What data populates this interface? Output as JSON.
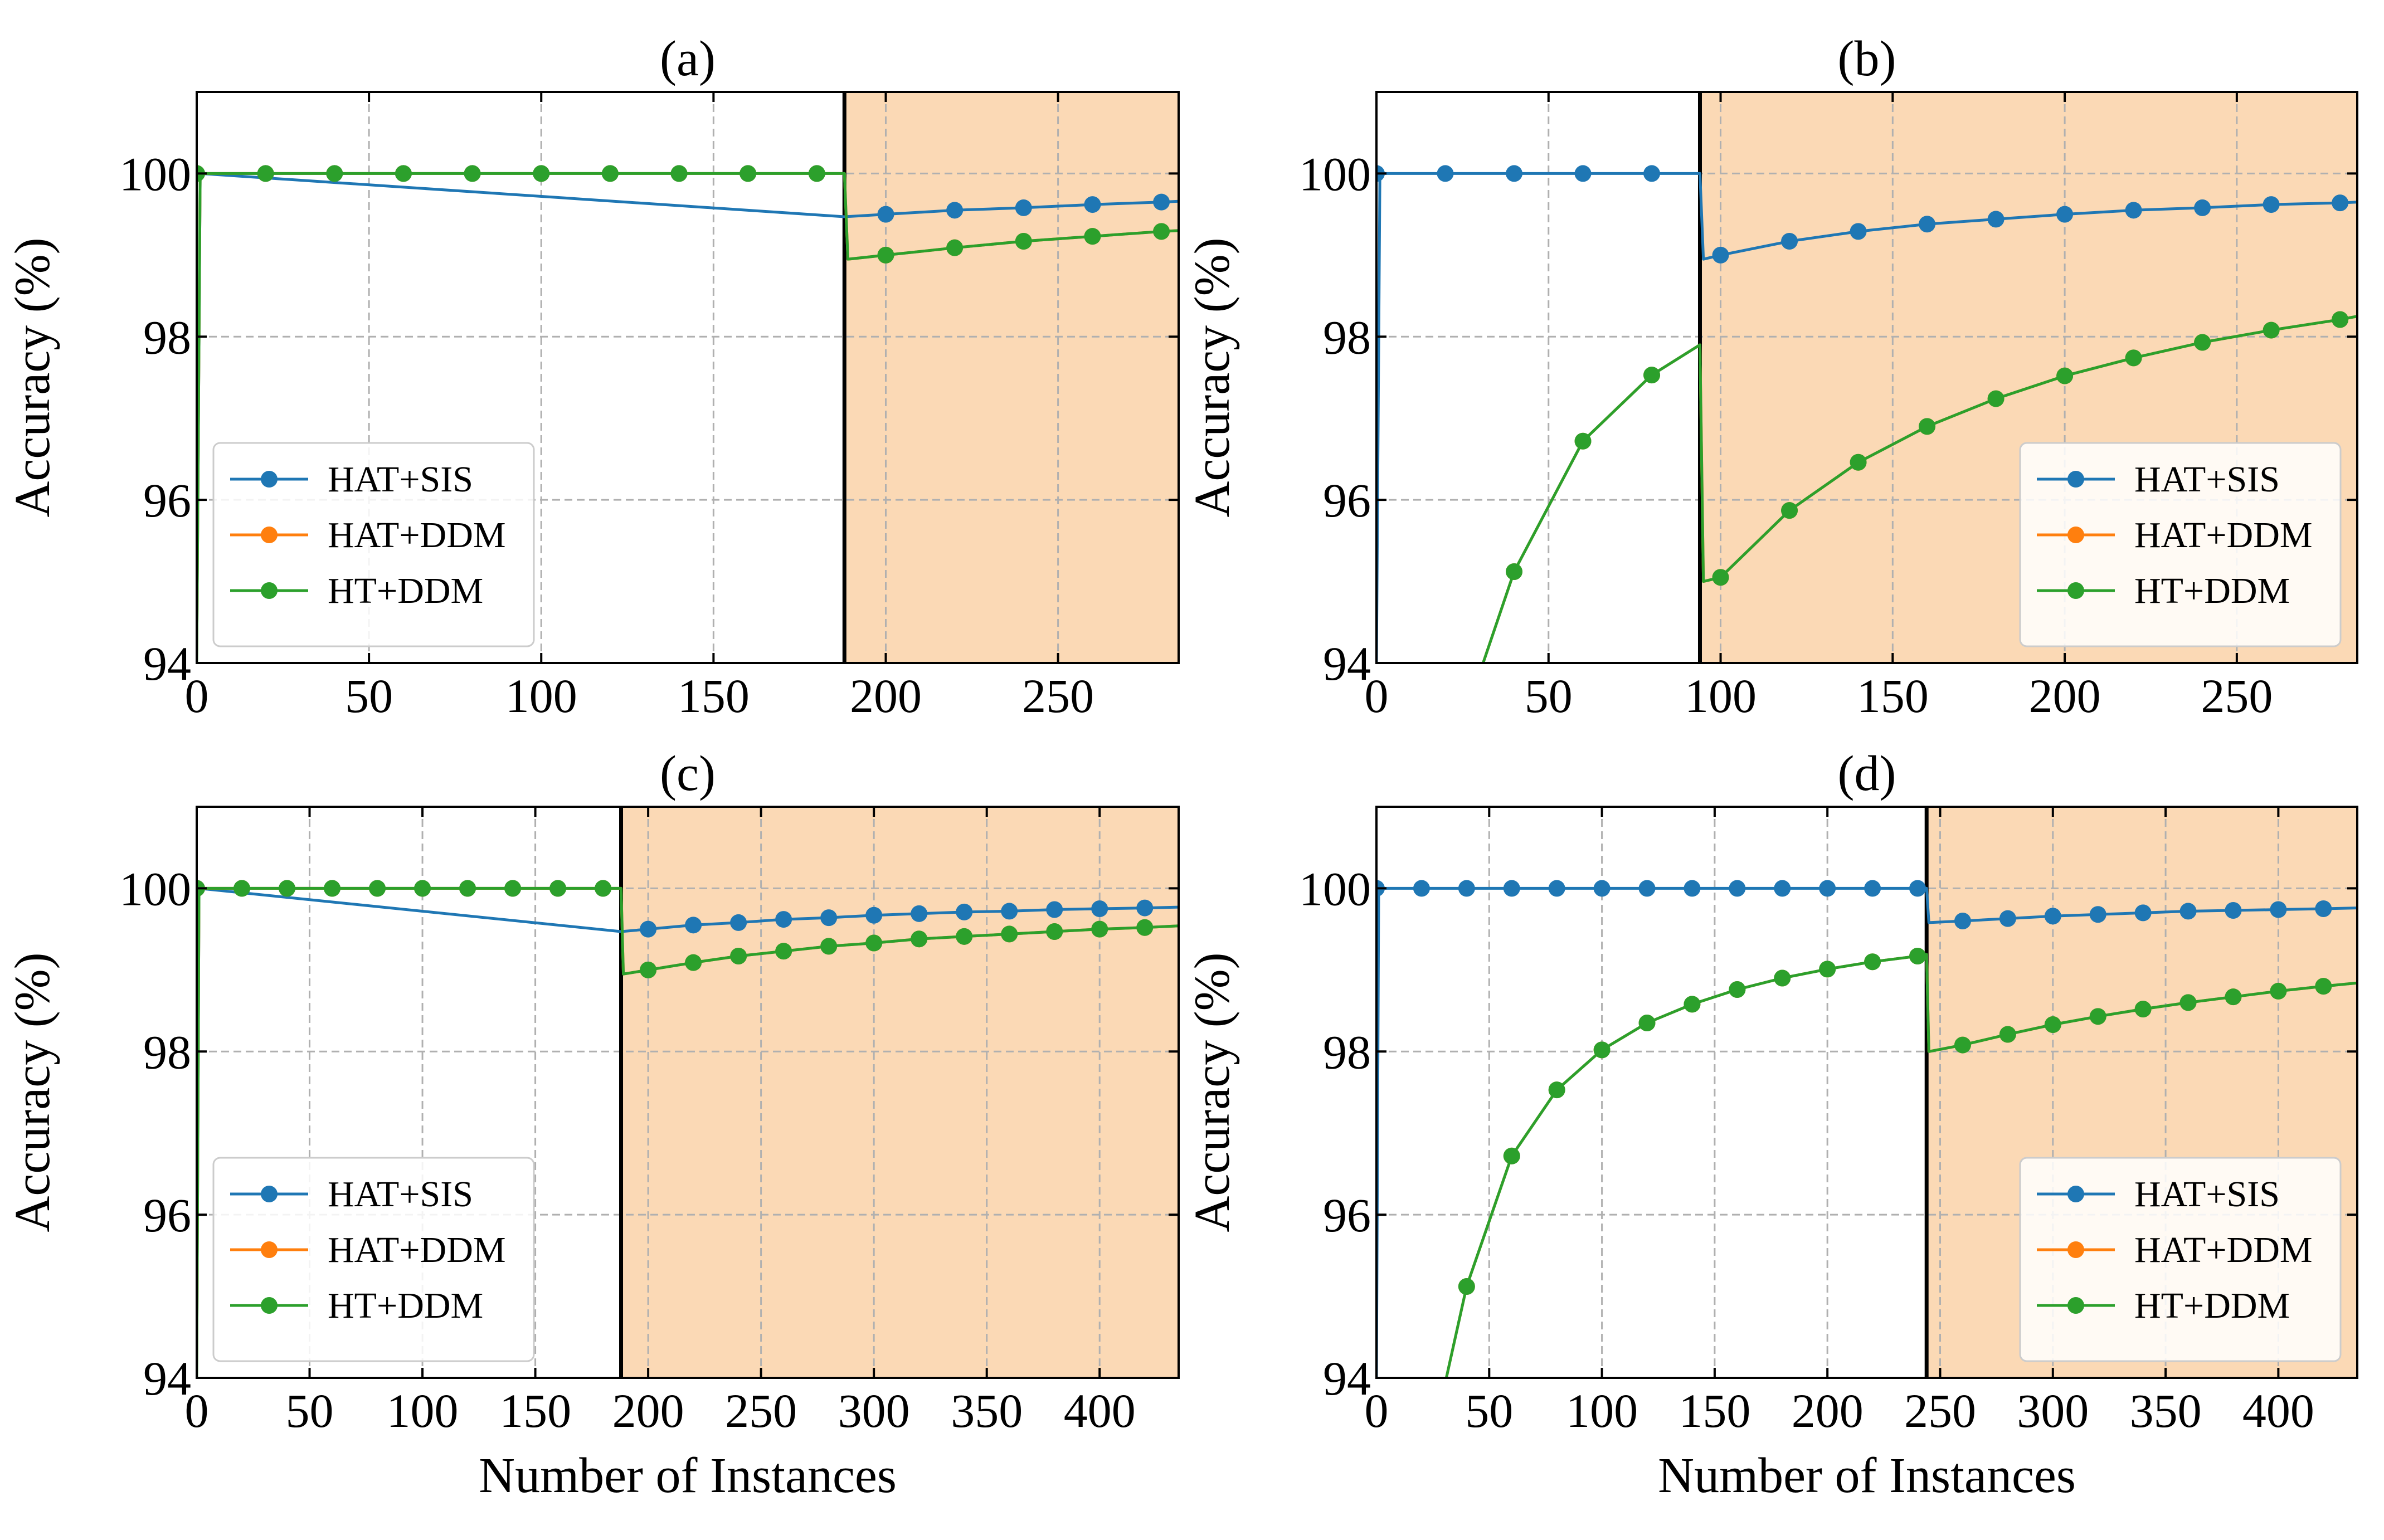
{
  "figure": {
    "xlabel": "Number of Instances",
    "ylabel": "Accuracy (%)"
  },
  "colors": {
    "HAT+SIS": "#1f77b4",
    "HAT+DDM": "#ff7f0e",
    "HT+DDM": "#2ca02c",
    "drift_region": "#fbd9b5",
    "grid": "#b0b0b0",
    "axis": "#000000"
  },
  "chart_data": [
    {
      "type": "line",
      "title": "(a)",
      "xlabel": "",
      "ylabel": "Accuracy (%)",
      "xlim": [
        0,
        285
      ],
      "ylim": [
        94,
        101
      ],
      "xticks": [
        0,
        50,
        100,
        150,
        200,
        250
      ],
      "yticks": [
        94,
        96,
        98,
        100
      ],
      "grid": true,
      "legend_position": "lower-left",
      "drift_point": 188,
      "series": [
        {
          "name": "HAT+SIS",
          "x": [
            0,
            1,
            188,
            200,
            220,
            240,
            260,
            280,
            285
          ],
          "y": [
            94,
            100,
            99.47,
            99.5,
            99.55,
            99.58,
            99.62,
            99.65,
            99.66
          ],
          "marker_x": [
            0,
            20,
            40,
            60,
            80,
            100,
            120,
            140,
            160,
            180,
            200,
            220,
            240,
            260,
            280
          ],
          "marker_y": [
            100,
            100,
            100,
            100,
            100,
            100,
            100,
            100,
            100,
            100,
            99.5,
            99.55,
            99.58,
            99.62,
            99.65
          ]
        },
        {
          "name": "HAT+DDM",
          "x": [
            0,
            1,
            188,
            189,
            200,
            220,
            240,
            260,
            280,
            285
          ],
          "y": [
            94,
            100,
            100,
            98.95,
            99.0,
            99.09,
            99.17,
            99.23,
            99.29,
            99.3
          ],
          "marker_x": [
            0,
            20,
            40,
            60,
            80,
            100,
            120,
            140,
            160,
            180,
            200,
            220,
            240,
            260,
            280
          ],
          "marker_y": [
            100,
            100,
            100,
            100,
            100,
            100,
            100,
            100,
            100,
            100,
            99.0,
            99.09,
            99.17,
            99.23,
            99.29
          ]
        },
        {
          "name": "HT+DDM",
          "x": [
            0,
            1,
            188,
            189,
            200,
            220,
            240,
            260,
            280,
            285
          ],
          "y": [
            94,
            100,
            100,
            98.95,
            99.0,
            99.09,
            99.17,
            99.23,
            99.29,
            99.3
          ],
          "marker_x": [
            0,
            20,
            40,
            60,
            80,
            100,
            120,
            140,
            160,
            180,
            200,
            220,
            240,
            260,
            280
          ],
          "marker_y": [
            100,
            100,
            100,
            100,
            100,
            100,
            100,
            100,
            100,
            100,
            99.0,
            99.09,
            99.17,
            99.23,
            99.29
          ]
        }
      ]
    },
    {
      "type": "line",
      "title": "(b)",
      "xlabel": "",
      "ylabel": "Accuracy (%)",
      "xlim": [
        0,
        285
      ],
      "ylim": [
        94,
        101
      ],
      "xticks": [
        0,
        50,
        100,
        150,
        200,
        250
      ],
      "yticks": [
        94,
        96,
        98,
        100
      ],
      "grid": true,
      "legend_position": "lower-right",
      "drift_point": 94,
      "series": [
        {
          "name": "HAT+SIS",
          "x": [
            0,
            1,
            94,
            95,
            100,
            120,
            140,
            160,
            180,
            200,
            220,
            240,
            260,
            280,
            285
          ],
          "y": [
            94,
            100,
            100,
            98.95,
            99.0,
            99.17,
            99.29,
            99.38,
            99.44,
            99.5,
            99.55,
            99.58,
            99.62,
            99.64,
            99.65
          ],
          "marker_x": [
            0,
            20,
            40,
            60,
            80,
            100,
            120,
            140,
            160,
            180,
            200,
            220,
            240,
            260,
            280
          ],
          "marker_y": [
            100,
            100,
            100,
            100,
            100,
            99.0,
            99.17,
            99.29,
            99.38,
            99.44,
            99.5,
            99.55,
            99.58,
            99.62,
            99.64
          ]
        },
        {
          "name": "HAT+DDM",
          "x": [
            31,
            40,
            60,
            80,
            94,
            95,
            100,
            120,
            140,
            160,
            180,
            200,
            220,
            240,
            260,
            280,
            285
          ],
          "y": [
            94,
            95.12,
            96.72,
            97.53,
            97.9,
            95.0,
            95.05,
            95.87,
            96.46,
            96.9,
            97.24,
            97.52,
            97.74,
            97.93,
            98.08,
            98.21,
            98.25
          ],
          "marker_x": [
            40,
            60,
            80,
            100,
            120,
            140,
            160,
            180,
            200,
            220,
            240,
            260,
            280
          ],
          "marker_y": [
            95.12,
            96.72,
            97.53,
            95.05,
            95.87,
            96.46,
            96.9,
            97.24,
            97.52,
            97.74,
            97.93,
            98.08,
            98.21
          ]
        },
        {
          "name": "HT+DDM",
          "x": [
            31,
            40,
            60,
            80,
            94,
            95,
            100,
            120,
            140,
            160,
            180,
            200,
            220,
            240,
            260,
            280,
            285
          ],
          "y": [
            94,
            95.12,
            96.72,
            97.53,
            97.9,
            95.0,
            95.05,
            95.87,
            96.46,
            96.9,
            97.24,
            97.52,
            97.74,
            97.93,
            98.08,
            98.21,
            98.25
          ],
          "marker_x": [
            40,
            60,
            80,
            100,
            120,
            140,
            160,
            180,
            200,
            220,
            240,
            260,
            280
          ],
          "marker_y": [
            95.12,
            96.72,
            97.53,
            95.05,
            95.87,
            96.46,
            96.9,
            97.24,
            97.52,
            97.74,
            97.93,
            98.08,
            98.21
          ]
        }
      ]
    },
    {
      "type": "line",
      "title": "(c)",
      "xlabel": "Number of Instances",
      "ylabel": "Accuracy (%)",
      "xlim": [
        0,
        435
      ],
      "ylim": [
        94,
        101
      ],
      "xticks": [
        0,
        50,
        100,
        150,
        200,
        250,
        300,
        350,
        400
      ],
      "yticks": [
        94,
        96,
        98,
        100
      ],
      "grid": true,
      "legend_position": "lower-left",
      "drift_point": 188,
      "series": [
        {
          "name": "HAT+SIS",
          "x": [
            0,
            1,
            188,
            200,
            220,
            240,
            260,
            280,
            300,
            320,
            340,
            360,
            380,
            400,
            420,
            435
          ],
          "y": [
            94,
            100,
            99.47,
            99.5,
            99.55,
            99.58,
            99.62,
            99.64,
            99.67,
            99.69,
            99.71,
            99.72,
            99.74,
            99.75,
            99.76,
            99.77
          ],
          "marker_x": [
            0,
            20,
            40,
            60,
            80,
            100,
            120,
            140,
            160,
            180,
            200,
            220,
            240,
            260,
            280,
            300,
            320,
            340,
            360,
            380,
            400,
            420
          ],
          "marker_y": [
            100,
            100,
            100,
            100,
            100,
            100,
            100,
            100,
            100,
            100,
            99.5,
            99.55,
            99.58,
            99.62,
            99.64,
            99.67,
            99.69,
            99.71,
            99.72,
            99.74,
            99.75,
            99.76
          ]
        },
        {
          "name": "HAT+DDM",
          "x": [
            0,
            1,
            188,
            189,
            200,
            220,
            240,
            260,
            280,
            300,
            320,
            340,
            360,
            380,
            400,
            420,
            435
          ],
          "y": [
            94,
            100,
            100,
            98.95,
            99.0,
            99.09,
            99.17,
            99.23,
            99.29,
            99.33,
            99.38,
            99.41,
            99.44,
            99.47,
            99.5,
            99.52,
            99.54
          ],
          "marker_x": [
            0,
            20,
            40,
            60,
            80,
            100,
            120,
            140,
            160,
            180,
            200,
            220,
            240,
            260,
            280,
            300,
            320,
            340,
            360,
            380,
            400,
            420
          ],
          "marker_y": [
            100,
            100,
            100,
            100,
            100,
            100,
            100,
            100,
            100,
            100,
            99.0,
            99.09,
            99.17,
            99.23,
            99.29,
            99.33,
            99.38,
            99.41,
            99.44,
            99.47,
            99.5,
            99.52
          ]
        },
        {
          "name": "HT+DDM",
          "x": [
            0,
            1,
            188,
            189,
            200,
            220,
            240,
            260,
            280,
            300,
            320,
            340,
            360,
            380,
            400,
            420,
            435
          ],
          "y": [
            94,
            100,
            100,
            98.95,
            99.0,
            99.09,
            99.17,
            99.23,
            99.29,
            99.33,
            99.38,
            99.41,
            99.44,
            99.47,
            99.5,
            99.52,
            99.54
          ],
          "marker_x": [
            0,
            20,
            40,
            60,
            80,
            100,
            120,
            140,
            160,
            180,
            200,
            220,
            240,
            260,
            280,
            300,
            320,
            340,
            360,
            380,
            400,
            420
          ],
          "marker_y": [
            100,
            100,
            100,
            100,
            100,
            100,
            100,
            100,
            100,
            100,
            99.0,
            99.09,
            99.17,
            99.23,
            99.29,
            99.33,
            99.38,
            99.41,
            99.44,
            99.47,
            99.5,
            99.52
          ]
        }
      ]
    },
    {
      "type": "line",
      "title": "(d)",
      "xlabel": "Number of Instances",
      "ylabel": "Accuracy (%)",
      "xlim": [
        0,
        435
      ],
      "ylim": [
        94,
        101
      ],
      "xticks": [
        0,
        50,
        100,
        150,
        200,
        250,
        300,
        350,
        400
      ],
      "yticks": [
        94,
        96,
        98,
        100
      ],
      "grid": true,
      "legend_position": "lower-right",
      "drift_point": 244,
      "series": [
        {
          "name": "HAT+SIS",
          "x": [
            0,
            1,
            244,
            245,
            260,
            280,
            300,
            320,
            340,
            360,
            380,
            400,
            420,
            435
          ],
          "y": [
            94,
            100,
            100,
            99.58,
            99.6,
            99.63,
            99.66,
            99.68,
            99.7,
            99.72,
            99.73,
            99.74,
            99.75,
            99.76
          ],
          "marker_x": [
            0,
            20,
            40,
            60,
            80,
            100,
            120,
            140,
            160,
            180,
            200,
            220,
            240,
            260,
            280,
            300,
            320,
            340,
            360,
            380,
            400,
            420
          ],
          "marker_y": [
            100,
            100,
            100,
            100,
            100,
            100,
            100,
            100,
            100,
            100,
            100,
            100,
            100,
            99.6,
            99.63,
            99.66,
            99.68,
            99.7,
            99.72,
            99.73,
            99.74,
            99.75
          ]
        },
        {
          "name": "HAT+DDM",
          "x": [
            31,
            40,
            60,
            80,
            100,
            120,
            140,
            160,
            180,
            200,
            220,
            240,
            244,
            245,
            260,
            280,
            300,
            320,
            340,
            360,
            380,
            400,
            420,
            435
          ],
          "y": [
            94,
            95.12,
            96.72,
            97.53,
            98.02,
            98.35,
            98.58,
            98.76,
            98.9,
            99.01,
            99.1,
            99.17,
            99.19,
            98.0,
            98.08,
            98.21,
            98.33,
            98.43,
            98.52,
            98.6,
            98.67,
            98.74,
            98.8,
            98.84
          ],
          "marker_x": [
            40,
            60,
            80,
            100,
            120,
            140,
            160,
            180,
            200,
            220,
            240,
            260,
            280,
            300,
            320,
            340,
            360,
            380,
            400,
            420
          ],
          "marker_y": [
            95.12,
            96.72,
            97.53,
            98.02,
            98.35,
            98.58,
            98.76,
            98.9,
            99.01,
            99.1,
            99.17,
            98.08,
            98.21,
            98.33,
            98.43,
            98.52,
            98.6,
            98.67,
            98.74,
            98.8
          ]
        },
        {
          "name": "HT+DDM",
          "x": [
            31,
            40,
            60,
            80,
            100,
            120,
            140,
            160,
            180,
            200,
            220,
            240,
            244,
            245,
            260,
            280,
            300,
            320,
            340,
            360,
            380,
            400,
            420,
            435
          ],
          "y": [
            94,
            95.12,
            96.72,
            97.53,
            98.02,
            98.35,
            98.58,
            98.76,
            98.9,
            99.01,
            99.1,
            99.17,
            99.19,
            98.0,
            98.08,
            98.21,
            98.33,
            98.43,
            98.52,
            98.6,
            98.67,
            98.74,
            98.8,
            98.84
          ],
          "marker_x": [
            40,
            60,
            80,
            100,
            120,
            140,
            160,
            180,
            200,
            220,
            240,
            260,
            280,
            300,
            320,
            340,
            360,
            380,
            400,
            420
          ],
          "marker_y": [
            95.12,
            96.72,
            97.53,
            98.02,
            98.35,
            98.58,
            98.76,
            98.9,
            99.01,
            99.1,
            99.17,
            98.08,
            98.21,
            98.33,
            98.43,
            98.52,
            98.6,
            98.67,
            98.74,
            98.8
          ]
        }
      ]
    }
  ]
}
